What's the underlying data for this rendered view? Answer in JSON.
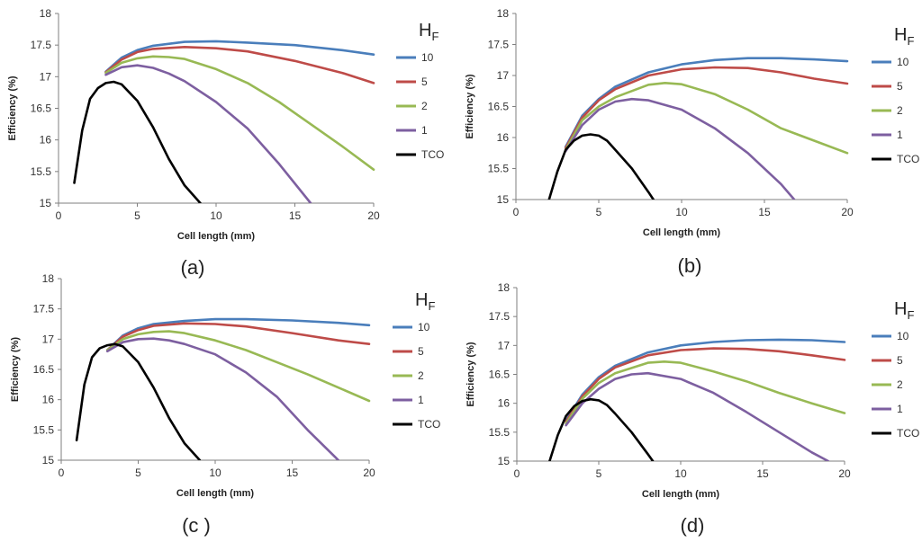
{
  "chart_data": [
    {
      "type": "line",
      "panel_label": "(a)",
      "xlabel": "Cell length (mm)",
      "ylabel": "Efficiency (%)",
      "xlim": [
        0,
        20
      ],
      "ylim": [
        15,
        18
      ],
      "xticks": [
        "0",
        "5",
        "10",
        "15",
        "20"
      ],
      "yticks": [
        "15",
        "15.5",
        "16",
        "16.5",
        "17",
        "17.5",
        "18"
      ],
      "legend_title": "H",
      "legend_title_sub": "F",
      "series": [
        {
          "name": "10",
          "color": "#4A7EBB",
          "x": [
            3,
            4,
            5,
            6,
            8,
            10,
            12,
            15,
            18,
            20
          ],
          "y": [
            17.08,
            17.3,
            17.42,
            17.49,
            17.55,
            17.56,
            17.54,
            17.5,
            17.42,
            17.35
          ]
        },
        {
          "name": "5",
          "color": "#BE4B48",
          "x": [
            3,
            4,
            5,
            6,
            8,
            10,
            12,
            15,
            18,
            20
          ],
          "y": [
            17.07,
            17.27,
            17.39,
            17.44,
            17.47,
            17.45,
            17.4,
            17.25,
            17.06,
            16.9
          ]
        },
        {
          "name": "2",
          "color": "#98B954",
          "x": [
            3,
            4,
            5,
            6,
            7,
            8,
            10,
            12,
            14,
            16,
            18,
            20
          ],
          "y": [
            17.06,
            17.22,
            17.29,
            17.32,
            17.31,
            17.28,
            17.12,
            16.9,
            16.6,
            16.25,
            15.9,
            15.53
          ]
        },
        {
          "name": "1",
          "color": "#7D5FA0",
          "x": [
            3,
            4,
            5,
            6,
            7,
            8,
            10,
            12,
            14,
            16
          ],
          "y": [
            17.03,
            17.15,
            17.18,
            17.14,
            17.05,
            16.93,
            16.6,
            16.18,
            15.62,
            15.0
          ]
        },
        {
          "name": "TCO",
          "color": "#000000",
          "x": [
            1,
            1.5,
            2,
            2.5,
            3,
            3.5,
            4,
            5,
            6,
            7,
            8,
            9
          ],
          "y": [
            15.32,
            16.15,
            16.65,
            16.82,
            16.9,
            16.92,
            16.88,
            16.62,
            16.2,
            15.7,
            15.28,
            15.0
          ]
        }
      ]
    },
    {
      "type": "line",
      "panel_label": "(b)",
      "xlabel": "Cell length (mm)",
      "ylabel": "Efficiency (%)",
      "xlim": [
        0,
        20
      ],
      "ylim": [
        15,
        18
      ],
      "xticks": [
        "0",
        "5",
        "10",
        "15",
        "20"
      ],
      "yticks": [
        "15",
        "15.5",
        "16",
        "16.5",
        "17",
        "17.5",
        "18"
      ],
      "legend_title": "H",
      "legend_title_sub": "F",
      "series": [
        {
          "name": "10",
          "color": "#4A7EBB",
          "x": [
            3,
            4,
            5,
            6,
            8,
            10,
            12,
            14,
            16,
            18,
            20
          ],
          "y": [
            15.85,
            16.35,
            16.62,
            16.82,
            17.05,
            17.18,
            17.25,
            17.28,
            17.28,
            17.26,
            17.23
          ]
        },
        {
          "name": "5",
          "color": "#BE4B48",
          "x": [
            3,
            4,
            5,
            6,
            8,
            10,
            12,
            14,
            16,
            18,
            20
          ],
          "y": [
            15.83,
            16.32,
            16.6,
            16.78,
            17.0,
            17.1,
            17.13,
            17.12,
            17.05,
            16.95,
            16.87
          ]
        },
        {
          "name": "2",
          "color": "#98B954",
          "x": [
            3,
            4,
            5,
            6,
            8,
            9,
            10,
            12,
            14,
            16,
            18,
            20
          ],
          "y": [
            15.8,
            16.28,
            16.5,
            16.65,
            16.85,
            16.88,
            16.86,
            16.7,
            16.45,
            16.15,
            15.95,
            15.75
          ]
        },
        {
          "name": "1",
          "color": "#7D5FA0",
          "x": [
            3,
            4,
            5,
            6,
            7,
            8,
            10,
            12,
            14,
            16,
            16.8
          ],
          "y": [
            15.78,
            16.2,
            16.45,
            16.58,
            16.62,
            16.6,
            16.45,
            16.15,
            15.75,
            15.25,
            15.0
          ]
        },
        {
          "name": "TCO",
          "color": "#000000",
          "x": [
            2,
            2.5,
            3,
            3.5,
            4,
            4.5,
            5,
            5.5,
            6,
            7,
            8,
            8.3
          ],
          "y": [
            15.0,
            15.45,
            15.8,
            15.95,
            16.03,
            16.05,
            16.03,
            15.95,
            15.8,
            15.5,
            15.12,
            15.0
          ]
        }
      ]
    },
    {
      "type": "line",
      "panel_label": "(c )",
      "xlabel": "Cell length (mm)",
      "ylabel": "Efficiency (%)",
      "xlim": [
        0,
        20
      ],
      "ylim": [
        15,
        18
      ],
      "xticks": [
        "0",
        "5",
        "10",
        "15",
        "20"
      ],
      "yticks": [
        "15",
        "15.5",
        "16",
        "16.5",
        "17",
        "17.5",
        "18"
      ],
      "legend_title": "H",
      "legend_title_sub": "F",
      "series": [
        {
          "name": "10",
          "color": "#4A7EBB",
          "x": [
            3,
            4,
            5,
            6,
            8,
            10,
            12,
            15,
            18,
            20
          ],
          "y": [
            16.82,
            17.06,
            17.18,
            17.25,
            17.3,
            17.33,
            17.33,
            17.31,
            17.27,
            17.23
          ]
        },
        {
          "name": "5",
          "color": "#BE4B48",
          "x": [
            3,
            4,
            5,
            6,
            8,
            10,
            12,
            15,
            18,
            20
          ],
          "y": [
            16.82,
            17.04,
            17.15,
            17.22,
            17.26,
            17.25,
            17.21,
            17.1,
            16.98,
            16.92
          ]
        },
        {
          "name": "2",
          "color": "#98B954",
          "x": [
            3,
            4,
            5,
            6,
            7,
            8,
            10,
            12,
            14,
            16,
            18,
            20
          ],
          "y": [
            16.82,
            17.0,
            17.08,
            17.12,
            17.13,
            17.1,
            16.98,
            16.82,
            16.62,
            16.42,
            16.2,
            15.98
          ]
        },
        {
          "name": "1",
          "color": "#7D5FA0",
          "x": [
            3,
            4,
            5,
            6,
            7,
            8,
            10,
            12,
            14,
            16,
            18
          ],
          "y": [
            16.8,
            16.95,
            17.0,
            17.01,
            16.98,
            16.92,
            16.75,
            16.45,
            16.05,
            15.5,
            15.0
          ]
        },
        {
          "name": "TCO",
          "color": "#000000",
          "x": [
            1,
            1.5,
            2,
            2.5,
            3,
            3.5,
            4,
            5,
            6,
            7,
            8,
            9
          ],
          "y": [
            15.33,
            16.25,
            16.7,
            16.85,
            16.9,
            16.92,
            16.88,
            16.62,
            16.2,
            15.7,
            15.28,
            15.0
          ]
        }
      ]
    },
    {
      "type": "line",
      "panel_label": "(d)",
      "xlabel": "Cell length (mm)",
      "ylabel": "Efficiency (%)",
      "xlim": [
        0,
        20
      ],
      "ylim": [
        15,
        18
      ],
      "xticks": [
        "0",
        "5",
        "10",
        "15",
        "20"
      ],
      "yticks": [
        "15",
        "15.5",
        "16",
        "16.5",
        "17",
        "17.5",
        "18"
      ],
      "legend_title": "H",
      "legend_title_sub": "F",
      "series": [
        {
          "name": "10",
          "color": "#4A7EBB",
          "x": [
            3,
            4,
            5,
            6,
            8,
            10,
            12,
            14,
            16,
            18,
            20
          ],
          "y": [
            15.7,
            16.15,
            16.45,
            16.65,
            16.88,
            17.0,
            17.06,
            17.09,
            17.1,
            17.09,
            17.06
          ]
        },
        {
          "name": "5",
          "color": "#BE4B48",
          "x": [
            3,
            4,
            5,
            6,
            8,
            10,
            12,
            14,
            16,
            18,
            20
          ],
          "y": [
            15.68,
            16.12,
            16.42,
            16.62,
            16.83,
            16.92,
            16.95,
            16.94,
            16.9,
            16.83,
            16.75
          ]
        },
        {
          "name": "2",
          "color": "#98B954",
          "x": [
            3,
            4,
            5,
            6,
            8,
            9,
            10,
            12,
            14,
            16,
            18,
            20
          ],
          "y": [
            15.65,
            16.08,
            16.35,
            16.52,
            16.7,
            16.72,
            16.7,
            16.55,
            16.38,
            16.18,
            16.0,
            15.83
          ]
        },
        {
          "name": "1",
          "color": "#7D5FA0",
          "x": [
            3,
            4,
            5,
            6,
            7,
            8,
            10,
            12,
            14,
            16,
            18,
            19
          ],
          "y": [
            15.62,
            16.0,
            16.25,
            16.42,
            16.5,
            16.52,
            16.42,
            16.18,
            15.85,
            15.5,
            15.15,
            15.0
          ]
        },
        {
          "name": "TCO",
          "color": "#000000",
          "x": [
            2,
            2.5,
            3,
            3.5,
            4,
            4.5,
            5,
            5.5,
            6,
            7,
            8,
            8.3
          ],
          "y": [
            15.0,
            15.45,
            15.78,
            15.95,
            16.04,
            16.07,
            16.05,
            15.97,
            15.82,
            15.5,
            15.12,
            15.0
          ]
        }
      ]
    }
  ]
}
